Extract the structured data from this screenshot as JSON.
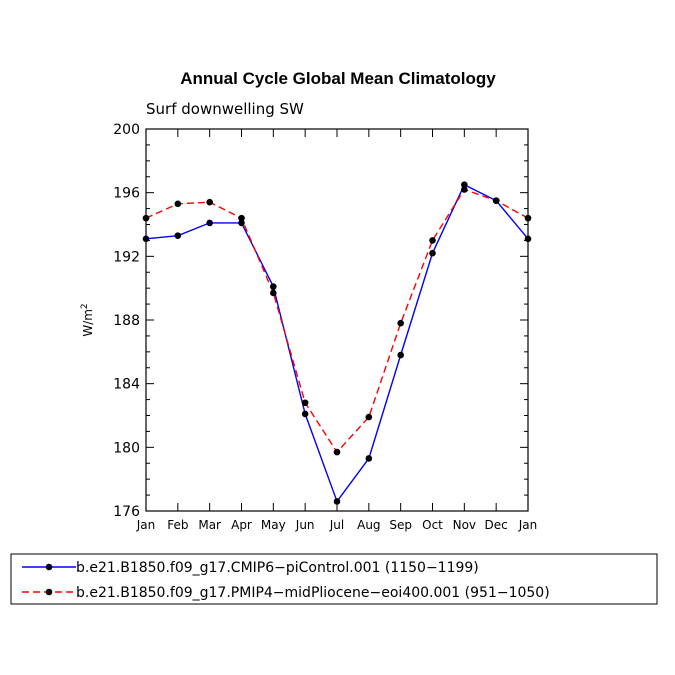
{
  "chart_data": {
    "type": "line",
    "title": "Annual Cycle Global Mean Climatology",
    "subtitle": "Surf downwelling SW",
    "ylabel_base": "W/m",
    "ylabel_sup": "2",
    "xlabel": "",
    "ylim": [
      176,
      200
    ],
    "yticks": [
      "200",
      "196",
      "192",
      "188",
      "184",
      "180",
      "176"
    ],
    "categories": [
      "Jan",
      "Feb",
      "Mar",
      "Apr",
      "May",
      "Jun",
      "Jul",
      "Aug",
      "Sep",
      "Oct",
      "Nov",
      "Dec",
      "Jan"
    ],
    "series": [
      {
        "name": "b.e21.B1850.f09_g17.CMIP6−piControl.001 (1150−1199)",
        "color": "#0000ff",
        "style": "solid",
        "values": [
          193.1,
          193.3,
          194.1,
          194.1,
          190.1,
          182.1,
          176.6,
          179.3,
          185.8,
          192.2,
          196.5,
          195.5,
          193.1
        ]
      },
      {
        "name": "b.e21.B1850.f09_g17.PMIP4−midPliocene−eoi400.001 (951−1050)",
        "color": "#ff0000",
        "style": "dashed",
        "values": [
          194.4,
          195.3,
          195.4,
          194.4,
          189.7,
          182.8,
          179.7,
          181.9,
          187.8,
          193.0,
          196.2,
          195.5,
          194.4
        ]
      }
    ]
  }
}
